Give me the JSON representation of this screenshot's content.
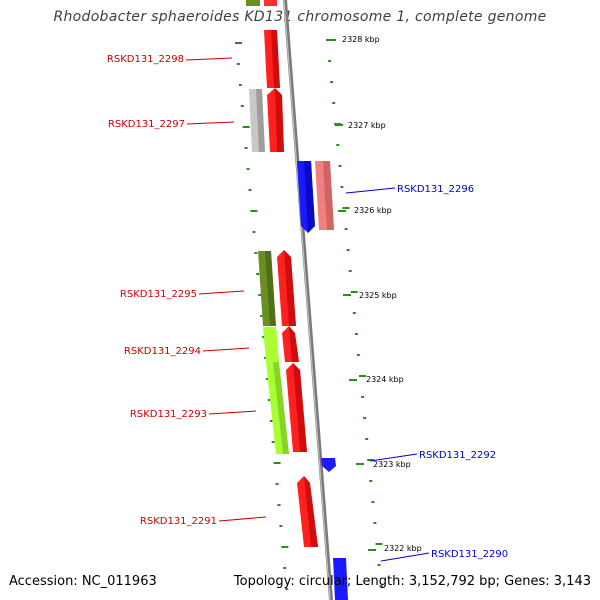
{
  "title": "Rhodobacter sphaeroides KD131 chromosome 1, complete genome",
  "footer": {
    "accession": "Accession: NC_011963",
    "topology": "Topology: circular; Length: 3,152,792 bp; Genes: 3,143"
  },
  "colors": {
    "axis": "#8c8c8c",
    "tick": "#2e8b22",
    "label_left": "#cc0000",
    "label_right": "#0000cc"
  },
  "kbp_ticks": [
    "2328 kbp",
    "2327 kbp",
    "2326 kbp",
    "2325 kbp",
    "2324 kbp",
    "2323 kbp",
    "2322 kbp"
  ],
  "genes": [
    {
      "id": "RSKD131_2298",
      "label": "RSKD131_2298",
      "side": "left"
    },
    {
      "id": "RSKD131_2297",
      "label": "RSKD131_2297",
      "side": "left"
    },
    {
      "id": "RSKD131_2296",
      "label": "RSKD131_2296",
      "side": "right"
    },
    {
      "id": "RSKD131_2295",
      "label": "RSKD131_2295",
      "side": "left"
    },
    {
      "id": "RSKD131_2294",
      "label": "RSKD131_2294",
      "side": "left"
    },
    {
      "id": "RSKD131_2293",
      "label": "RSKD131_2293",
      "side": "left"
    },
    {
      "id": "RSKD131_2292",
      "label": "RSKD131_2292",
      "side": "right"
    },
    {
      "id": "RSKD131_2291",
      "label": "RSKD131_2291",
      "side": "left"
    },
    {
      "id": "RSKD131_2290",
      "label": "RSKD131_2290",
      "side": "right"
    }
  ]
}
